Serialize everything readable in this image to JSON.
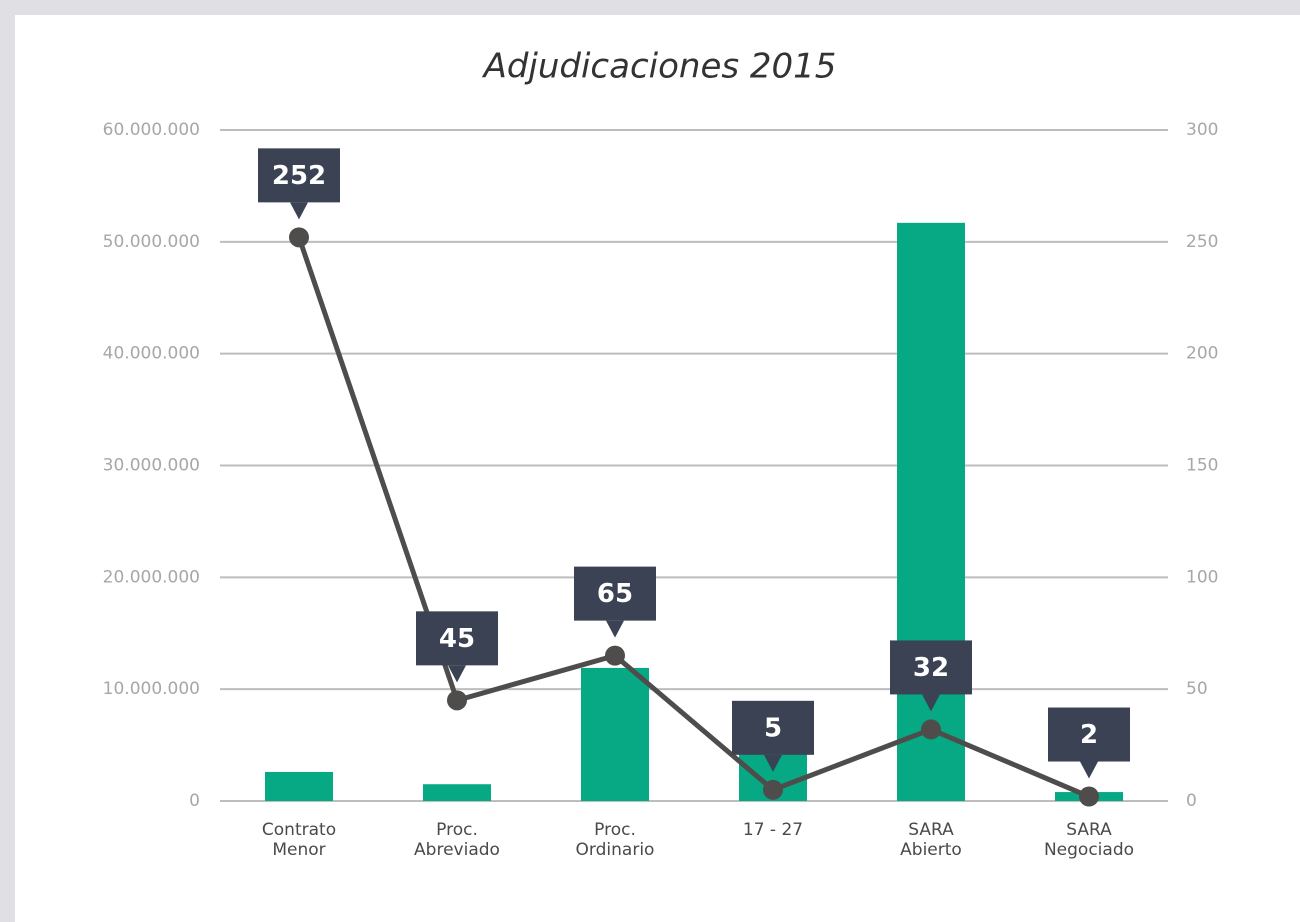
{
  "chart_data": {
    "type": "bar+line",
    "title": "Adjudicaciones 2015",
    "categories": [
      [
        "Contrato",
        "Menor"
      ],
      [
        "Proc.",
        "Abreviado"
      ],
      [
        "Proc.",
        "Ordinario"
      ],
      [
        "17 - 27"
      ],
      [
        "SARA",
        "Abierto"
      ],
      [
        "SARA",
        "Negociado"
      ]
    ],
    "series": [
      {
        "type": "bar",
        "color": "#06a984",
        "values": [
          2600000,
          1500000,
          11900000,
          6400000,
          51700000,
          800000
        ]
      },
      {
        "type": "line",
        "axis": "y2",
        "color": "#4f4c4c",
        "values": [
          252,
          45,
          65,
          5,
          32,
          2
        ],
        "label_color": "#3a4254"
      }
    ],
    "ylim": [
      0,
      60000000
    ],
    "yticks": [
      0,
      {
        "value": 10000000,
        "label": "10.000.000"
      },
      {
        "value": 20000000,
        "label": "20.000.000"
      },
      {
        "value": 30000000,
        "label": "30.000.000"
      },
      {
        "value": 40000000,
        "label": "40.000.000"
      },
      {
        "value": 50000000,
        "label": "50.000.000"
      },
      {
        "value": 60000000,
        "label": "60.000.000"
      }
    ],
    "y2lim": [
      0,
      300
    ],
    "y2ticks": [
      0,
      50,
      100,
      150,
      200,
      250,
      300
    ],
    "grid": true
  }
}
